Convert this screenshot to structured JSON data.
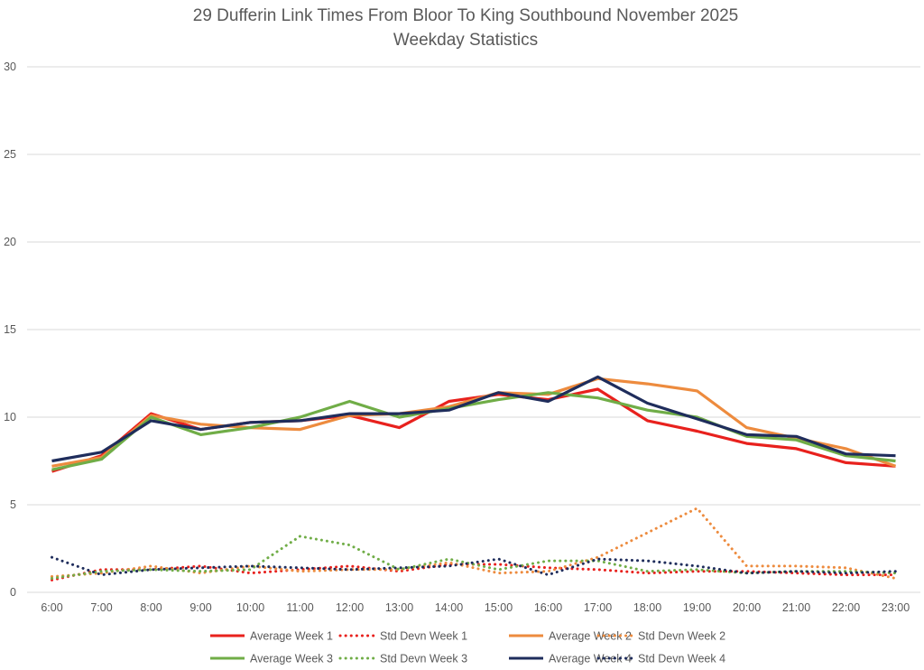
{
  "chart_data": {
    "type": "line",
    "title": "29 Dufferin Link Times From Bloor To King Southbound November 2025",
    "subtitle": "Weekday Statistics",
    "xlabel": "",
    "ylabel": "",
    "ylim": [
      0,
      30
    ],
    "y_ticks": [
      "0",
      "5",
      "10",
      "15",
      "20",
      "25",
      "30"
    ],
    "grid": true,
    "legend_position": "bottom",
    "categories": [
      "6:00",
      "7:00",
      "8:00",
      "9:00",
      "10:00",
      "11:00",
      "12:00",
      "13:00",
      "14:00",
      "15:00",
      "16:00",
      "17:00",
      "18:00",
      "19:00",
      "20:00",
      "21:00",
      "22:00",
      "23:00"
    ],
    "series": [
      {
        "name": "Average Week 1",
        "color": "#e8211d",
        "style": "solid",
        "values": [
          6.9,
          7.8,
          10.2,
          9.3,
          9.7,
          9.8,
          10.1,
          9.4,
          10.9,
          11.3,
          11.0,
          11.6,
          9.8,
          9.2,
          8.5,
          8.2,
          7.4,
          7.2
        ]
      },
      {
        "name": "Std Devn Week 1",
        "color": "#e8211d",
        "style": "dotted",
        "values": [
          0.7,
          1.3,
          1.3,
          1.5,
          1.1,
          1.3,
          1.5,
          1.2,
          1.6,
          1.6,
          1.4,
          1.3,
          1.1,
          1.2,
          1.2,
          1.1,
          1.0,
          1.0
        ]
      },
      {
        "name": "Average Week 2",
        "color": "#ed8b3e",
        "style": "solid",
        "values": [
          7.2,
          7.7,
          10.1,
          9.6,
          9.4,
          9.3,
          10.1,
          10.2,
          10.6,
          11.4,
          11.3,
          12.2,
          11.9,
          11.5,
          9.4,
          8.8,
          8.2,
          7.2
        ]
      },
      {
        "name": "Std Devn Week 2",
        "color": "#ed8b3e",
        "style": "dotted",
        "values": [
          0.9,
          1.1,
          1.5,
          1.1,
          1.5,
          1.2,
          1.3,
          1.3,
          1.7,
          1.1,
          1.2,
          2.0,
          3.4,
          4.8,
          1.5,
          1.5,
          1.4,
          0.8
        ]
      },
      {
        "name": "Average Week 3",
        "color": "#70ad47",
        "style": "solid",
        "values": [
          7.0,
          7.6,
          10.0,
          9.0,
          9.4,
          10.0,
          10.9,
          10.0,
          10.5,
          11.0,
          11.4,
          11.1,
          10.4,
          10.0,
          8.9,
          8.7,
          7.8,
          7.5
        ]
      },
      {
        "name": "Std Devn Week 3",
        "color": "#70ad47",
        "style": "dotted",
        "values": [
          0.8,
          1.2,
          1.3,
          1.2,
          1.3,
          3.2,
          2.7,
          1.3,
          1.9,
          1.3,
          1.8,
          1.8,
          1.2,
          1.3,
          1.1,
          1.2,
          1.2,
          1.1
        ]
      },
      {
        "name": "Average Week 4",
        "color": "#1f2d5c",
        "style": "solid",
        "values": [
          7.5,
          8.0,
          9.8,
          9.3,
          9.7,
          9.8,
          10.2,
          10.2,
          10.4,
          11.4,
          10.9,
          12.3,
          10.8,
          9.9,
          9.0,
          8.9,
          7.9,
          7.8
        ]
      },
      {
        "name": "Std Devn Week 4",
        "color": "#1f2d5c",
        "style": "dotted",
        "values": [
          2.0,
          1.0,
          1.3,
          1.4,
          1.5,
          1.4,
          1.3,
          1.4,
          1.5,
          1.9,
          1.0,
          1.9,
          1.8,
          1.5,
          1.1,
          1.2,
          1.1,
          1.2
        ]
      }
    ]
  }
}
